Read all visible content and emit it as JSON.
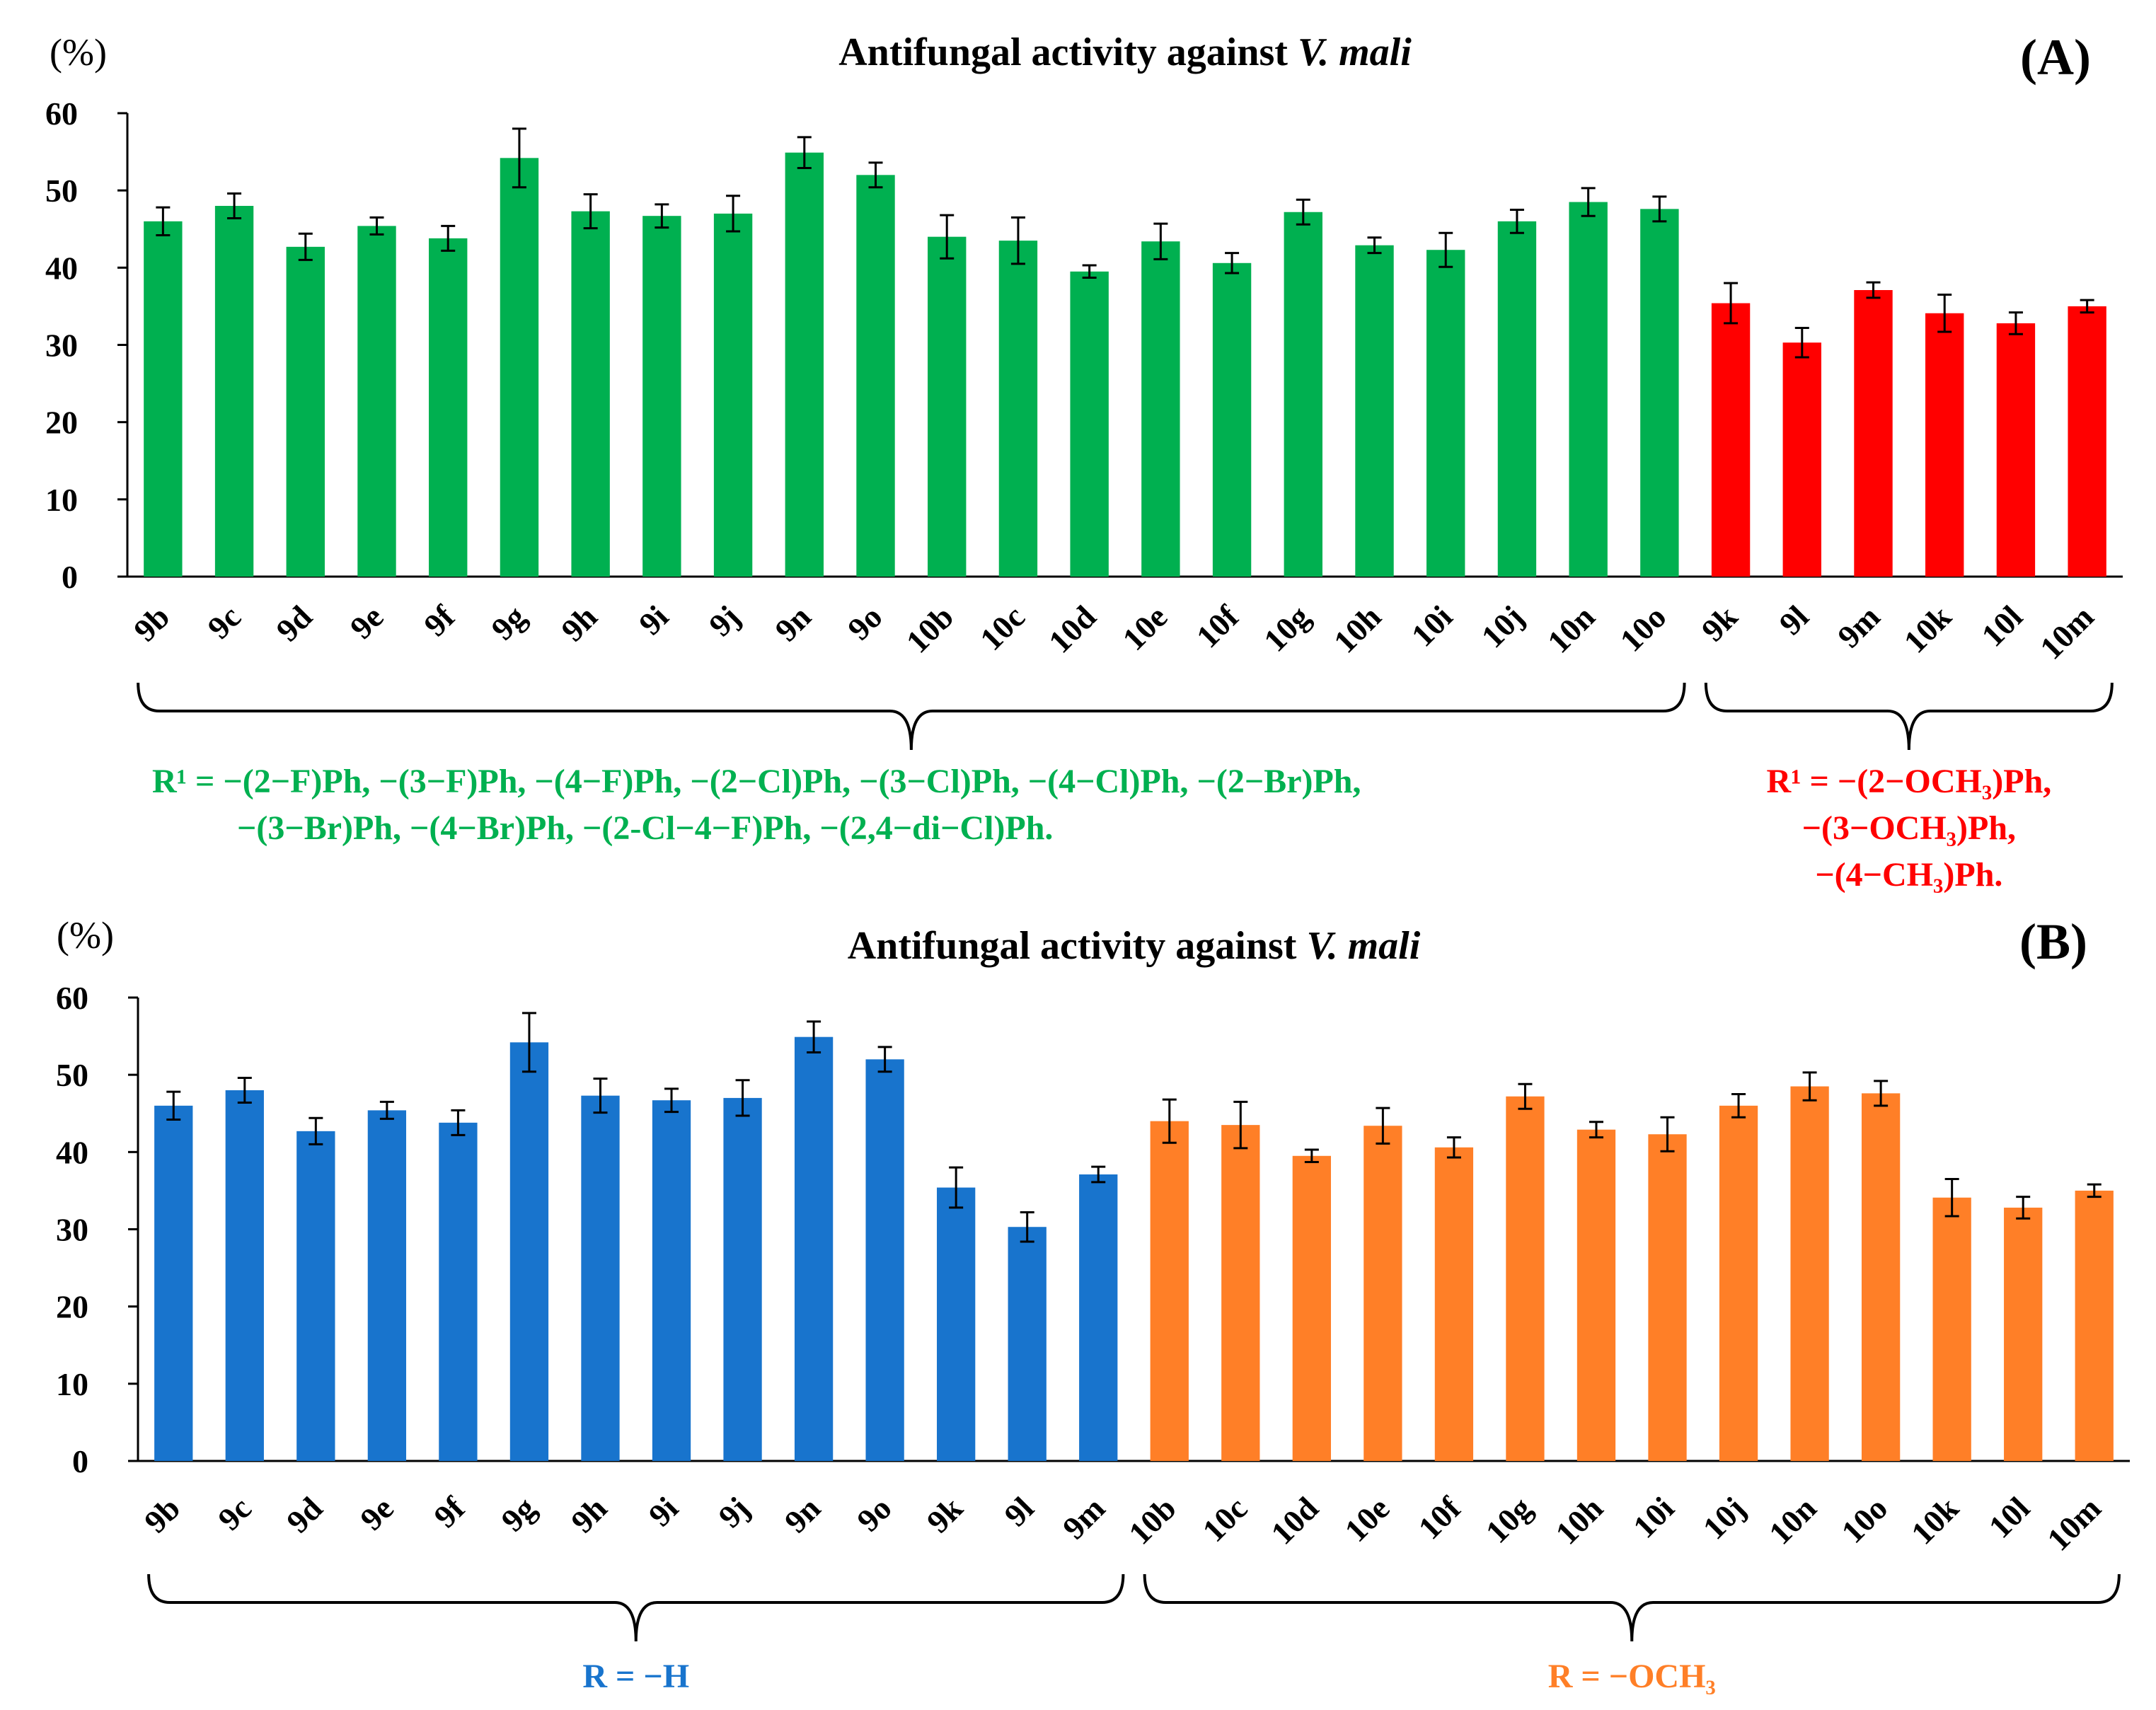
{
  "chart_data": [
    {
      "type": "bar",
      "panel_label": "(A)",
      "title_prefix": "Antifungal activity against ",
      "title_italic": "V. mali",
      "ylabel": "(%)",
      "ylim": [
        0,
        60
      ],
      "yticks": [
        "0",
        "10",
        "20",
        "30",
        "40",
        "50",
        "60"
      ],
      "categories": [
        "9b",
        "9c",
        "9d",
        "9e",
        "9f",
        "9g",
        "9h",
        "9i",
        "9j",
        "9n",
        "9o",
        "10b",
        "10c",
        "10d",
        "10e",
        "10f",
        "10g",
        "10h",
        "10i",
        "10j",
        "10n",
        "10o",
        "9k",
        "9l",
        "9m",
        "10k",
        "10l",
        "10m"
      ],
      "values": [
        46.0,
        48.0,
        42.7,
        45.4,
        43.8,
        54.2,
        47.3,
        46.7,
        47.0,
        54.9,
        52.0,
        44.0,
        43.5,
        39.5,
        43.4,
        40.6,
        47.2,
        42.9,
        42.3,
        46.0,
        48.5,
        47.6,
        35.4,
        30.3,
        37.1,
        34.1,
        32.8,
        35.0
      ],
      "errors": [
        1.8,
        1.6,
        1.7,
        1.1,
        1.6,
        3.8,
        2.2,
        1.5,
        2.3,
        2.0,
        1.6,
        2.8,
        3.0,
        0.8,
        2.3,
        1.3,
        1.6,
        1.0,
        2.2,
        1.5,
        1.8,
        1.6,
        2.6,
        1.9,
        1.0,
        2.4,
        1.4,
        0.8
      ],
      "colors": [
        "#00b050",
        "#00b050",
        "#00b050",
        "#00b050",
        "#00b050",
        "#00b050",
        "#00b050",
        "#00b050",
        "#00b050",
        "#00b050",
        "#00b050",
        "#00b050",
        "#00b050",
        "#00b050",
        "#00b050",
        "#00b050",
        "#00b050",
        "#00b050",
        "#00b050",
        "#00b050",
        "#00b050",
        "#00b050",
        "#ff0000",
        "#ff0000",
        "#ff0000",
        "#ff0000",
        "#ff0000",
        "#ff0000"
      ],
      "groups": [
        {
          "start": 0,
          "end": 21,
          "color": "#00b050",
          "align": "left",
          "lines": [
            "R¹ = −(2−F)Ph, −(3−F)Ph, −(4−F)Ph, −(2−Cl)Ph, −(3−Cl)Ph, −(4−Cl)Ph, −(2−Br)Ph,",
            "−(3−Br)Ph,  −(4−Br)Ph, −(2-Cl−4−F)Ph, −(2,4−di−Cl)Ph."
          ]
        },
        {
          "start": 22,
          "end": 27,
          "color": "#ff0000",
          "align": "center",
          "lines": [
            "R¹ = −(2−OCH₃)Ph,",
            "−(3−OCH₃)Ph,",
            "−(4−CH₃)Ph."
          ]
        }
      ]
    },
    {
      "type": "bar",
      "panel_label": "(B)",
      "title_prefix": "Antifungal activity against ",
      "title_italic": "V. mali",
      "ylabel": "(%)",
      "ylim": [
        0,
        60
      ],
      "yticks": [
        "0",
        "10",
        "20",
        "30",
        "40",
        "50",
        "60"
      ],
      "categories": [
        "9b",
        "9c",
        "9d",
        "9e",
        "9f",
        "9g",
        "9h",
        "9i",
        "9j",
        "9n",
        "9o",
        "9k",
        "9l",
        "9m",
        "10b",
        "10c",
        "10d",
        "10e",
        "10f",
        "10g",
        "10h",
        "10i",
        "10j",
        "10n",
        "10o",
        "10k",
        "10l",
        "10m"
      ],
      "values": [
        46.0,
        48.0,
        42.7,
        45.4,
        43.8,
        54.2,
        47.3,
        46.7,
        47.0,
        54.9,
        52.0,
        35.4,
        30.3,
        37.1,
        44.0,
        43.5,
        39.5,
        43.4,
        40.6,
        47.2,
        42.9,
        42.3,
        46.0,
        48.5,
        47.6,
        34.1,
        32.8,
        35.0
      ],
      "errors": [
        1.8,
        1.6,
        1.7,
        1.1,
        1.6,
        3.8,
        2.2,
        1.5,
        2.3,
        2.0,
        1.6,
        2.6,
        1.9,
        1.0,
        2.8,
        3.0,
        0.8,
        2.3,
        1.3,
        1.6,
        1.0,
        2.2,
        1.5,
        1.8,
        1.6,
        2.4,
        1.4,
        0.8
      ],
      "colors": [
        "#1874cd",
        "#1874cd",
        "#1874cd",
        "#1874cd",
        "#1874cd",
        "#1874cd",
        "#1874cd",
        "#1874cd",
        "#1874cd",
        "#1874cd",
        "#1874cd",
        "#1874cd",
        "#1874cd",
        "#1874cd",
        "#ff7f27",
        "#ff7f27",
        "#ff7f27",
        "#ff7f27",
        "#ff7f27",
        "#ff7f27",
        "#ff7f27",
        "#ff7f27",
        "#ff7f27",
        "#ff7f27",
        "#ff7f27",
        "#ff7f27",
        "#ff7f27",
        "#ff7f27"
      ],
      "groups": [
        {
          "start": 0,
          "end": 13,
          "color": "#1874cd",
          "align": "center",
          "lines": [
            "R = −H"
          ]
        },
        {
          "start": 14,
          "end": 27,
          "color": "#ff7f27",
          "align": "center",
          "lines": [
            "R = −OCH₃"
          ]
        }
      ]
    }
  ]
}
